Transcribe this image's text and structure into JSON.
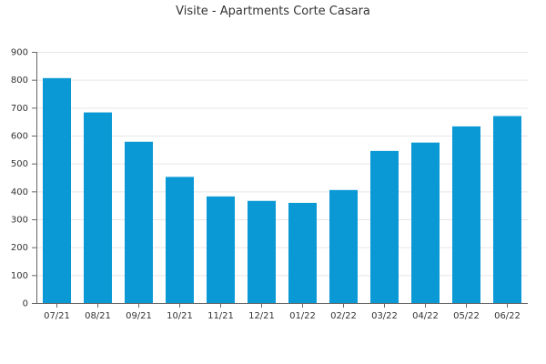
{
  "chart_data": {
    "type": "bar",
    "title": "Visite - Apartments Corte Casara",
    "xlabel": "",
    "ylabel": "",
    "categories": [
      "07/21",
      "08/21",
      "09/21",
      "10/21",
      "11/21",
      "12/21",
      "01/22",
      "02/22",
      "03/22",
      "04/22",
      "05/22",
      "06/22"
    ],
    "values": [
      806,
      683,
      578,
      452,
      382,
      366,
      359,
      405,
      545,
      575,
      633,
      670
    ],
    "ylim": [
      0,
      900
    ],
    "yticks": [
      "0",
      "100",
      "200",
      "300",
      "400",
      "500",
      "600",
      "700",
      "800",
      "900"
    ],
    "grid": true,
    "bar_color": "#0b99d5",
    "grid_color": "#e6e6e6",
    "axis_color": "#666666"
  }
}
